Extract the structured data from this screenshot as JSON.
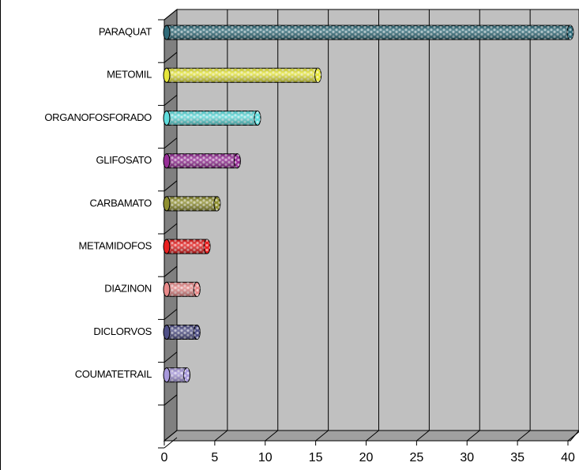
{
  "chart_data": {
    "type": "bar",
    "orientation": "horizontal",
    "categories": [
      "PARAQUAT",
      "METOMIL",
      "ORGANOFOSFORADO",
      "GLIFOSATO",
      "CARBAMATO",
      "METAMIDOFOS",
      "DIAZINON",
      "DICLORVOS",
      "COUMATETRAIL",
      null
    ],
    "values": [
      40,
      15,
      9,
      7,
      5,
      4,
      3,
      3,
      2,
      null
    ],
    "colors": [
      "#2f6a78",
      "#e6e63c",
      "#5fdcdc",
      "#962d96",
      "#8f8f2f",
      "#e82020",
      "#e88a8a",
      "#4f4f86",
      "#a899dc"
    ],
    "xlim": [
      0,
      40
    ],
    "xticks": [
      0,
      5,
      10,
      15,
      20,
      25,
      30,
      35,
      40
    ],
    "grid": true
  }
}
